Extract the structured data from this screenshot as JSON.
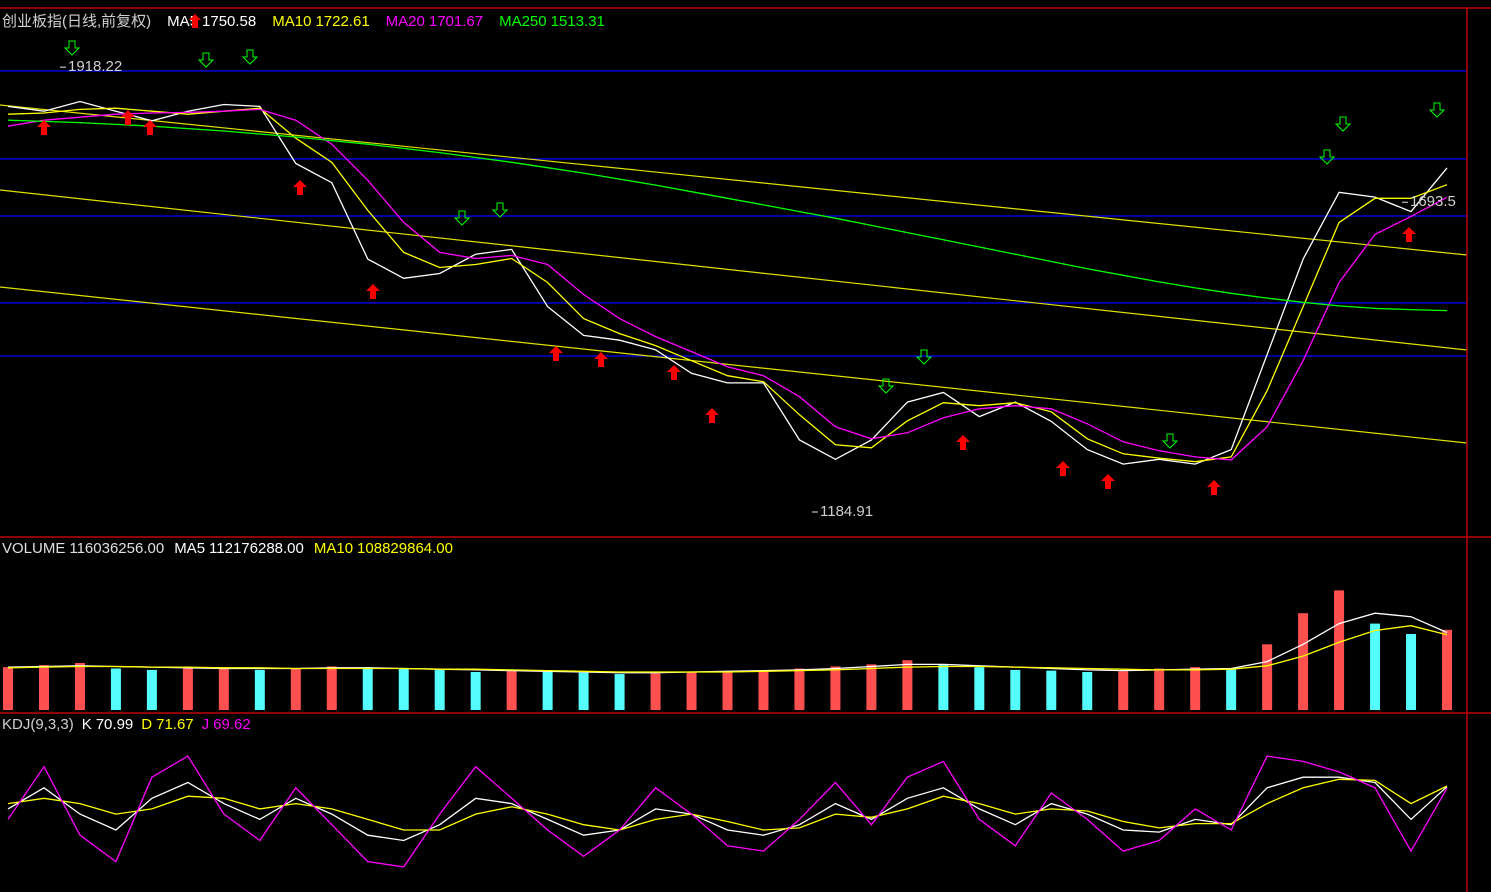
{
  "chart_data": [
    {
      "type": "line",
      "title": "创业板指(日线,前复权)",
      "ylim": [
        1145,
        1980
      ],
      "annotations": [
        {
          "text": "1918.22",
          "value": 1918.22
        },
        {
          "text": "1184.91",
          "value": 1184.91
        },
        {
          "text": "1693.5",
          "value": 1693.5
        }
      ],
      "series": [
        {
          "name": "MA5",
          "color": "#ffffff",
          "values": [
            1853,
            1845,
            1861,
            1845,
            1829,
            1845,
            1856,
            1853,
            1758,
            1726,
            1599,
            1567,
            1575,
            1607,
            1615,
            1520,
            1472,
            1464,
            1448,
            1409,
            1393,
            1393,
            1298,
            1266,
            1298,
            1361,
            1377,
            1337,
            1361,
            1329,
            1282,
            1258,
            1266,
            1258,
            1282,
            1440,
            1599,
            1710,
            1702,
            1678,
            1750.58
          ]
        },
        {
          "name": "MA10",
          "color": "#ffff00",
          "values": [
            1840,
            1842,
            1848,
            1850,
            1845,
            1840,
            1845,
            1850,
            1800,
            1760,
            1680,
            1610,
            1585,
            1590,
            1600,
            1560,
            1500,
            1475,
            1455,
            1430,
            1405,
            1395,
            1340,
            1290,
            1285,
            1330,
            1360,
            1355,
            1360,
            1345,
            1300,
            1275,
            1268,
            1262,
            1270,
            1380,
            1520,
            1660,
            1700,
            1700,
            1722.61
          ]
        },
        {
          "name": "MA20",
          "color": "#ff00ff",
          "values": [
            1820,
            1830,
            1835,
            1840,
            1842,
            1843,
            1845,
            1848,
            1830,
            1790,
            1730,
            1660,
            1610,
            1600,
            1605,
            1590,
            1540,
            1500,
            1470,
            1445,
            1420,
            1405,
            1370,
            1320,
            1300,
            1310,
            1335,
            1350,
            1355,
            1350,
            1325,
            1295,
            1280,
            1270,
            1265,
            1320,
            1430,
            1560,
            1640,
            1670,
            1701.67
          ]
        },
        {
          "name": "MA250",
          "color": "#00ff00",
          "values": [
            1830,
            1828,
            1826,
            1823,
            1820,
            1816,
            1812,
            1807,
            1802,
            1796,
            1790,
            1783,
            1776,
            1768,
            1760,
            1751,
            1742,
            1732,
            1722,
            1711,
            1700,
            1689,
            1678,
            1667,
            1655,
            1643,
            1631,
            1619,
            1607,
            1595,
            1583,
            1572,
            1561,
            1551,
            1542,
            1534,
            1527,
            1521,
            1517,
            1515,
            1513.31
          ]
        }
      ]
    },
    {
      "type": "bar",
      "title": "VOLUME",
      "ylim": [
        0,
        217000000
      ],
      "series": [
        {
          "name": "VOLUME",
          "color": "#54fcfc",
          "values": [
            62000000,
            65000000,
            68000000,
            60000000,
            58000000,
            60000000,
            62000000,
            58000000,
            60000000,
            63000000,
            62000000,
            60000000,
            58000000,
            55000000,
            57000000,
            55000000,
            54000000,
            52000000,
            53000000,
            55000000,
            56000000,
            57000000,
            60000000,
            63000000,
            66000000,
            72000000,
            65000000,
            62000000,
            58000000,
            57000000,
            55000000,
            56000000,
            60000000,
            62000000,
            60000000,
            95000000,
            140000000,
            173000000,
            125000000,
            110000000,
            116036256
          ],
          "value_labels": [
            null,
            null,
            null,
            null,
            null,
            null,
            null,
            null,
            null,
            null,
            null,
            null,
            null,
            null,
            null,
            null,
            null,
            null,
            null,
            null,
            null,
            null,
            null,
            null,
            null,
            null,
            null,
            null,
            null,
            null,
            null,
            null,
            null,
            null,
            null,
            null,
            null,
            null,
            null,
            null,
            "116036256.00"
          ]
        },
        {
          "name": "MA5",
          "color": "#ffffff",
          "values": [
            62000000,
            63000000,
            64000000,
            63000000,
            62000000,
            61000000,
            60000000,
            60000000,
            60000000,
            61000000,
            61000000,
            60000000,
            59000000,
            58000000,
            57000000,
            56000000,
            55000000,
            54000000,
            54000000,
            55000000,
            56000000,
            57000000,
            58000000,
            60000000,
            63000000,
            66000000,
            66000000,
            64000000,
            62000000,
            60000000,
            58000000,
            57000000,
            58000000,
            59000000,
            60000000,
            70000000,
            95000000,
            125000000,
            140000000,
            135000000,
            112176288
          ],
          "value_labels": [
            null,
            null,
            null,
            null,
            null,
            null,
            null,
            null,
            null,
            null,
            null,
            null,
            null,
            null,
            null,
            null,
            null,
            null,
            null,
            null,
            null,
            null,
            null,
            null,
            null,
            null,
            null,
            null,
            null,
            null,
            null,
            null,
            null,
            null,
            null,
            null,
            null,
            null,
            null,
            null,
            "112176288.00"
          ]
        },
        {
          "name": "MA10",
          "color": "#ffff00",
          "values": [
            61000000,
            62000000,
            63000000,
            63000000,
            62000000,
            62000000,
            61000000,
            61000000,
            60000000,
            60000000,
            60000000,
            60000000,
            59000000,
            59000000,
            58000000,
            57000000,
            56000000,
            55000000,
            55000000,
            55000000,
            55000000,
            56000000,
            57000000,
            58000000,
            60000000,
            62000000,
            63000000,
            63000000,
            62000000,
            61000000,
            60000000,
            59000000,
            58000000,
            58000000,
            59000000,
            64000000,
            78000000,
            98000000,
            115000000,
            122000000,
            108829864
          ],
          "value_labels": [
            null,
            null,
            null,
            null,
            null,
            null,
            null,
            null,
            null,
            null,
            null,
            null,
            null,
            null,
            null,
            null,
            null,
            null,
            null,
            null,
            null,
            null,
            null,
            null,
            null,
            null,
            null,
            null,
            null,
            null,
            null,
            null,
            null,
            null,
            null,
            null,
            null,
            null,
            null,
            null,
            "108829864.00"
          ]
        }
      ]
    },
    {
      "type": "line",
      "title": "KDJ(9,3,3)",
      "ylim": [
        -25,
        120
      ],
      "series": [
        {
          "name": "K",
          "color": "#ffffff",
          "values": [
            50,
            70,
            45,
            30,
            60,
            75,
            55,
            40,
            60,
            45,
            25,
            20,
            35,
            60,
            55,
            40,
            25,
            30,
            50,
            45,
            30,
            25,
            35,
            55,
            40,
            60,
            70,
            50,
            35,
            55,
            45,
            30,
            28,
            40,
            35,
            70,
            80,
            80,
            75,
            40,
            70.99
          ]
        },
        {
          "name": "D",
          "color": "#ffff00",
          "values": [
            55,
            60,
            55,
            45,
            50,
            62,
            60,
            50,
            55,
            50,
            40,
            30,
            30,
            45,
            52,
            45,
            35,
            30,
            40,
            45,
            38,
            30,
            32,
            45,
            42,
            50,
            62,
            55,
            45,
            50,
            48,
            38,
            32,
            36,
            36,
            55,
            70,
            78,
            77,
            55,
            71.67
          ]
        },
        {
          "name": "J",
          "color": "#ff00ff",
          "values": [
            40,
            90,
            25,
            0,
            80,
            100,
            45,
            20,
            70,
            35,
            0,
            -5,
            45,
            90,
            60,
            30,
            5,
            30,
            70,
            45,
            15,
            10,
            40,
            75,
            35,
            80,
            95,
            40,
            15,
            65,
            40,
            10,
            20,
            50,
            30,
            100,
            95,
            85,
            70,
            10,
            69.62
          ]
        }
      ]
    }
  ]
}
